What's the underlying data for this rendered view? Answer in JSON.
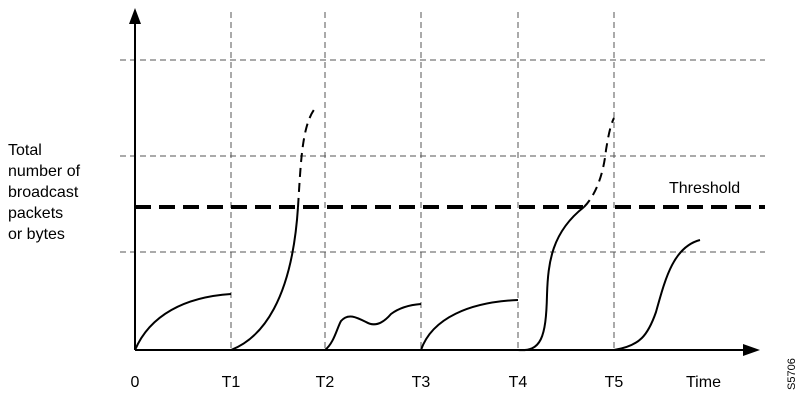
{
  "y_label_lines": [
    "Total",
    "number of",
    "broadcast",
    "packets",
    "or bytes"
  ],
  "x_ticks": [
    "0",
    "T1",
    "T2",
    "T3",
    "T4",
    "T5"
  ],
  "x_axis_end_label": "Time",
  "threshold_label": "Threshold",
  "figure_id": "S5706",
  "colors": {
    "line": "#000000",
    "grid": "#555555",
    "background": "#ffffff"
  }
}
